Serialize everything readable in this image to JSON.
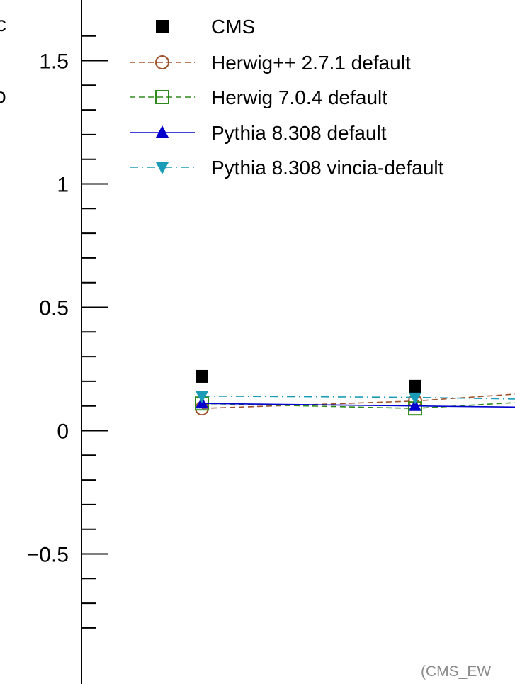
{
  "chart_data": {
    "type": "line",
    "title": "",
    "xlabel": "",
    "ylabel": "",
    "ylim": [
      -0.8,
      1.6
    ],
    "y_ticks": [
      {
        "value": 1.5,
        "label": "1.5"
      },
      {
        "value": 1.0,
        "label": "1"
      },
      {
        "value": 0.5,
        "label": "0.5"
      },
      {
        "value": 0.0,
        "label": "0"
      },
      {
        "value": -0.5,
        "label": "−0.5"
      }
    ],
    "y_minor_step": 0.1,
    "x_points": [
      1,
      2,
      3
    ],
    "series": [
      {
        "name": "CMS",
        "color": "#000000",
        "marker": "filled-square",
        "line": "none",
        "values": [
          0.22,
          0.18,
          null
        ]
      },
      {
        "name": "Herwig++ 2.7.1 default",
        "color": "#a0522d",
        "marker": "open-circle",
        "line": "dashed",
        "values": [
          0.09,
          0.12,
          0.18
        ]
      },
      {
        "name": "Herwig 7.0.4 default",
        "color": "#2e8b1a",
        "marker": "open-square",
        "line": "dashed",
        "values": [
          0.11,
          0.09,
          0.14
        ]
      },
      {
        "name": "Pythia 8.308 default",
        "color": "#0000cc",
        "marker": "filled-triangle-up",
        "line": "solid",
        "values": [
          0.11,
          0.1,
          0.09
        ]
      },
      {
        "name": "Pythia 8.308 vincia-default",
        "color": "#1a9cb8",
        "marker": "filled-triangle-down",
        "line": "dashdot",
        "values": [
          0.14,
          0.135,
          0.12
        ]
      }
    ],
    "legend_position": "top",
    "grid": false
  },
  "credit_text": "(CMS_EW",
  "edge_fragments": {
    "top": "c",
    "middle": "o"
  }
}
